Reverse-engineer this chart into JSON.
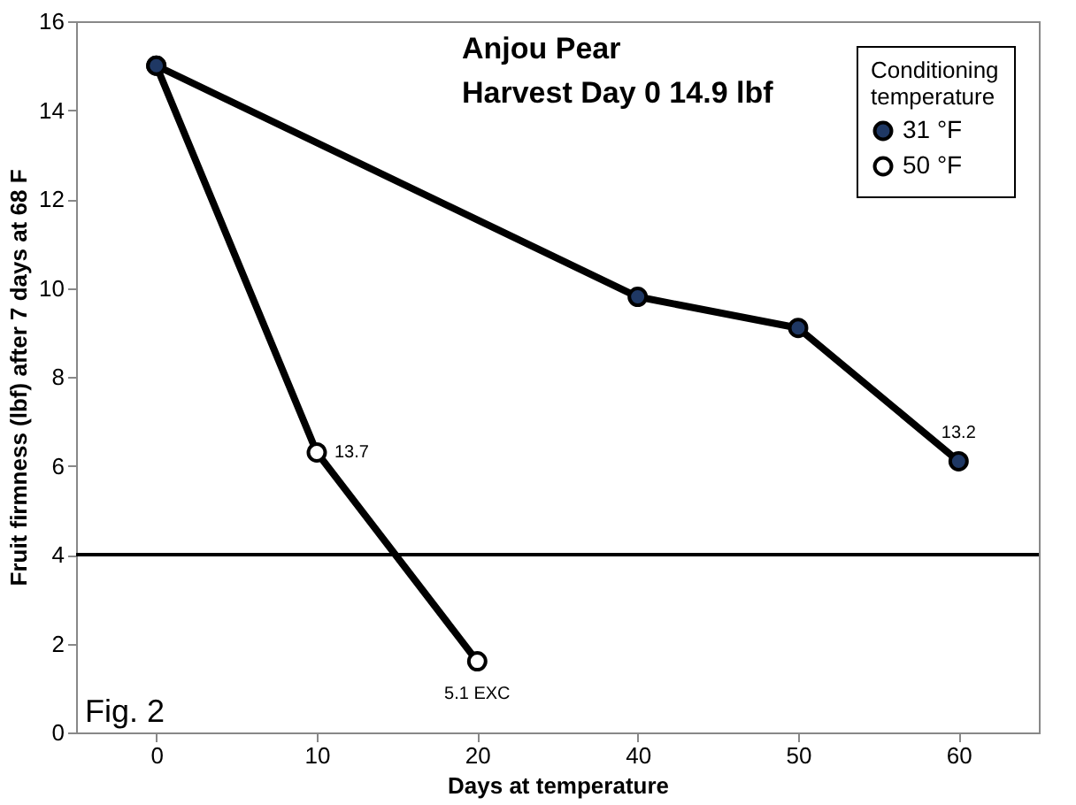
{
  "chart_data": {
    "type": "line",
    "title": "Anjou Pear",
    "subtitle": "Harvest Day 0  14.9 lbf",
    "xlabel": "Days at temperature",
    "ylabel": "Fruit firmness (lbf) after 7 days at 68  F",
    "legend_title": "Conditioning temperature",
    "categories": [
      "0",
      "10",
      "20",
      "40",
      "50",
      "60"
    ],
    "series": [
      {
        "name": "31 °F",
        "color": "#000000",
        "values": [
          15,
          null,
          null,
          9.8,
          9.1,
          6.1
        ]
      },
      {
        "name": "50 °F",
        "color": "#000000",
        "values": [
          15,
          6.3,
          1.6,
          null,
          null,
          null
        ]
      }
    ],
    "ylim": [
      0,
      16
    ],
    "yticks": [
      0,
      2,
      4,
      6,
      8,
      10,
      12,
      14,
      16
    ],
    "grid": false,
    "legend": "top right",
    "marker": "circle",
    "line_style": "solid",
    "ref_lines": [
      {
        "axis": "y",
        "value": 4,
        "color": "#000000"
      }
    ],
    "annotations": [
      {
        "text": "13.7",
        "x": "10",
        "y": 6.3
      },
      {
        "text": "13.2",
        "x": "60",
        "y": 6.1
      },
      {
        "text": "5.1  EXC",
        "x": "20",
        "y": 1.6
      },
      "Fig. 2"
    ]
  }
}
